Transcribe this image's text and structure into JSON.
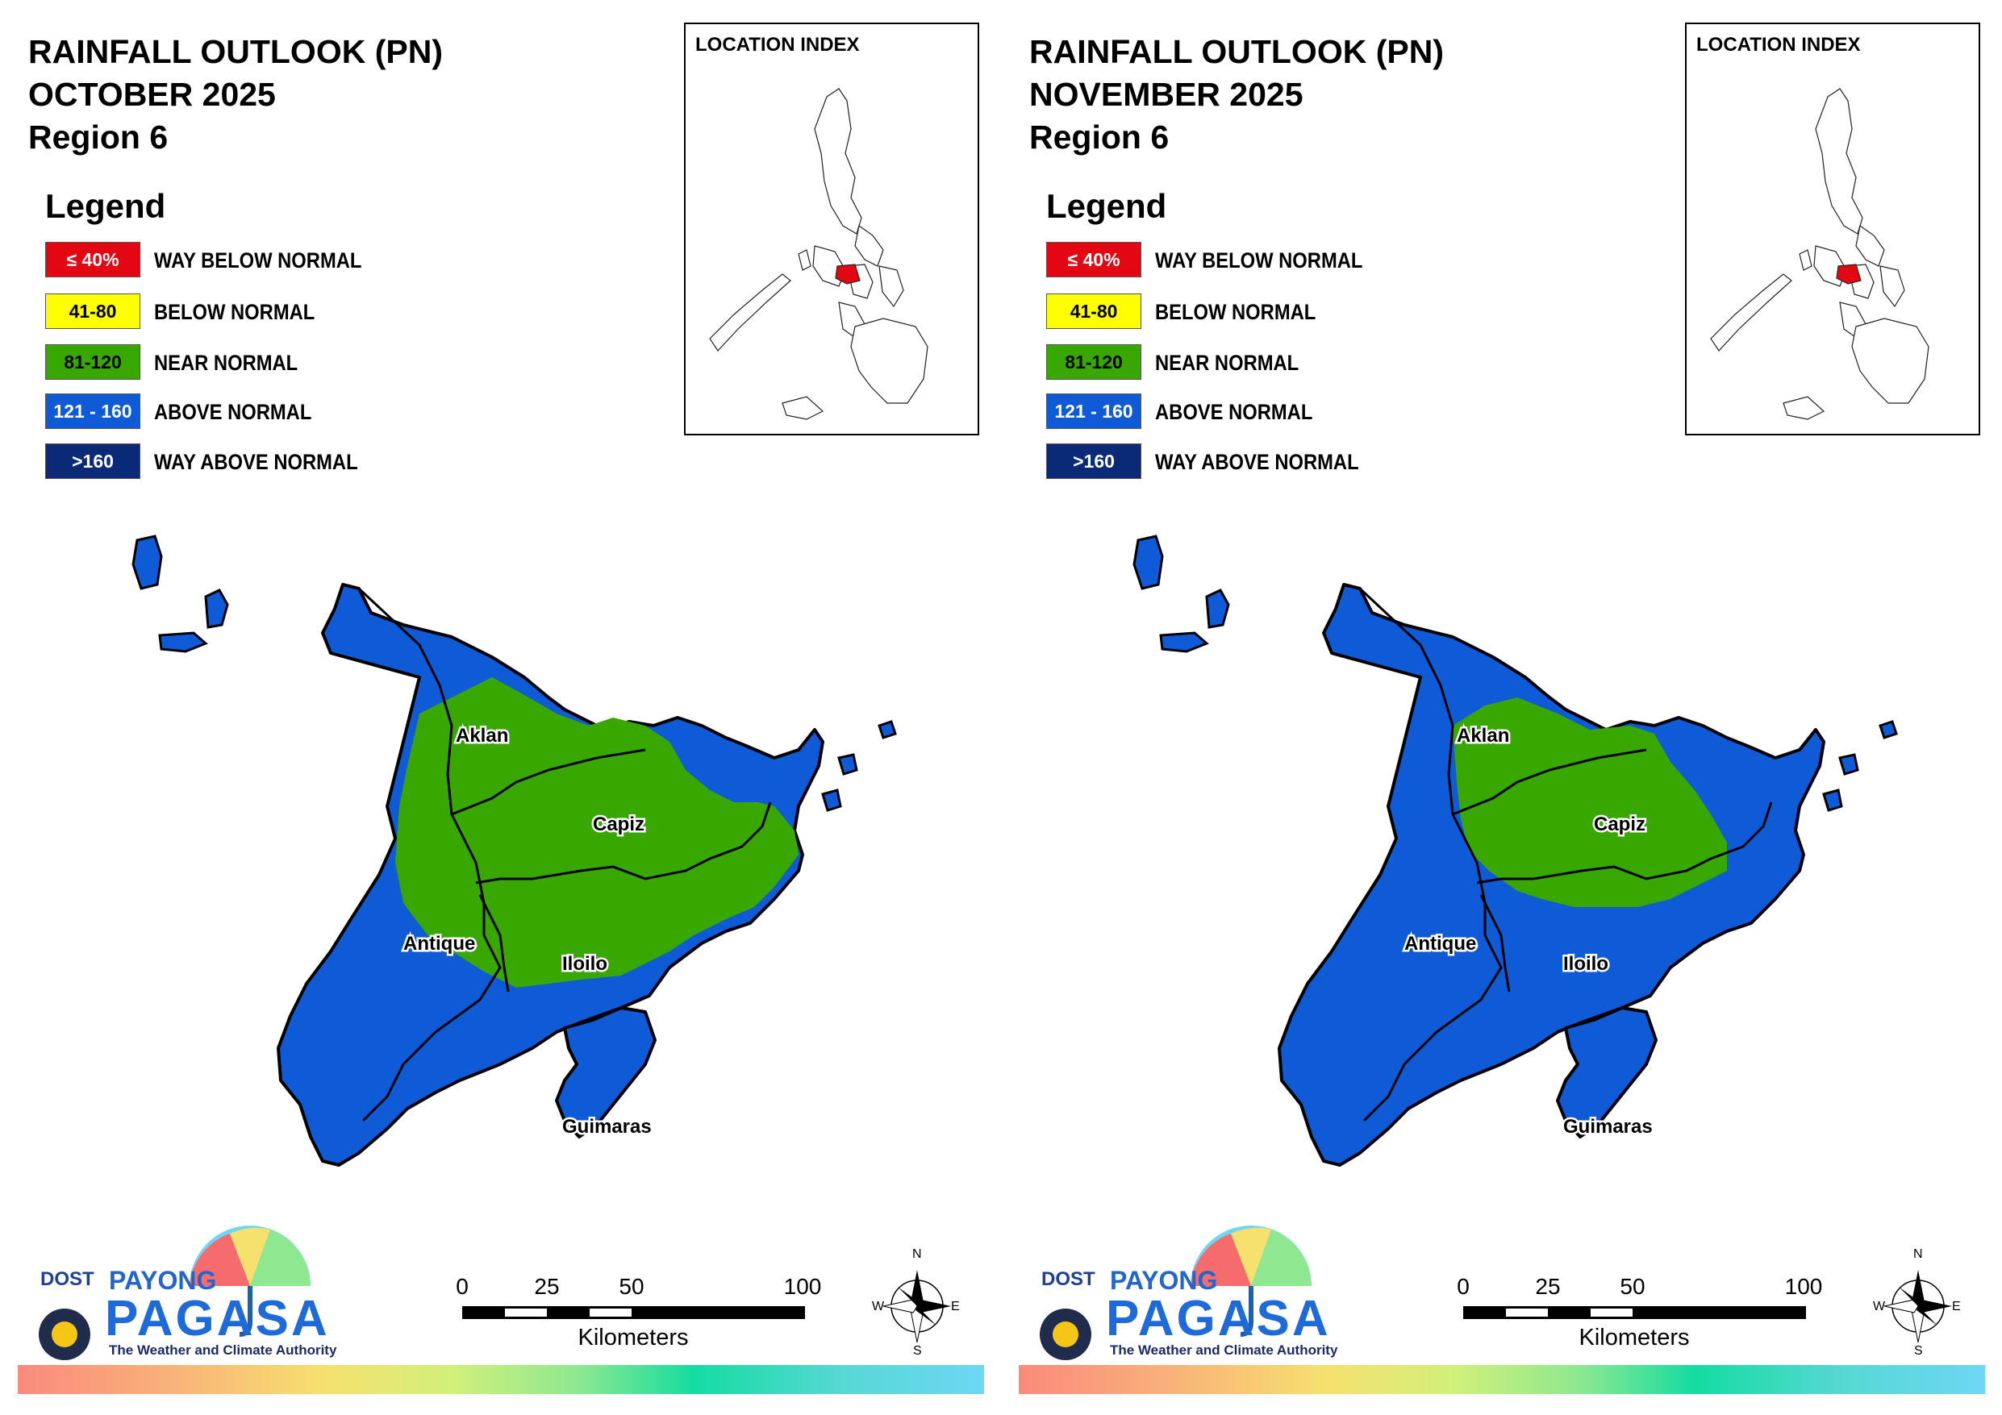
{
  "panels": [
    {
      "title_line1": "RAINFALL OUTLOOK (PN)",
      "title_line2": "OCTOBER 2025",
      "title_line3": "Region 6",
      "location_index_title": "LOCATION INDEX",
      "map_variant": "october"
    },
    {
      "title_line1": "RAINFALL OUTLOOK (PN)",
      "title_line2": "NOVEMBER 2025",
      "title_line3": "Region 6",
      "location_index_title": "LOCATION INDEX",
      "map_variant": "november"
    }
  ],
  "legend": {
    "heading": "Legend",
    "items": [
      {
        "range": "≤ 40%",
        "label": "WAY BELOW NORMAL",
        "color": "#e30613",
        "text_color": "#ffffff"
      },
      {
        "range": "41-80",
        "label": "BELOW NORMAL",
        "color": "#ffff00",
        "text_color": "#000000"
      },
      {
        "range": "81-120",
        "label": "NEAR NORMAL",
        "color": "#38a800",
        "text_color": "#000000"
      },
      {
        "range": "121 - 160",
        "label": "ABOVE NORMAL",
        "color": "#0e5ad7",
        "text_color": "#ffffff"
      },
      {
        "range": ">160",
        "label": "WAY ABOVE NORMAL",
        "color": "#0a2a78",
        "text_color": "#ffffff"
      }
    ]
  },
  "provinces": {
    "aklan": "Aklan",
    "capiz": "Capiz",
    "antique": "Antique",
    "iloilo": "Iloilo",
    "guimaras": "Guimaras"
  },
  "colors": {
    "near_normal": "#38a800",
    "above_normal": "#0e5ad7",
    "highlight_region": "#e30613"
  },
  "logo": {
    "agency": "DOST",
    "brand_top": "PAYONG",
    "brand_main": "PAGASA",
    "tagline": "The Weather and Climate Authority"
  },
  "scale": {
    "ticks": [
      "0",
      "25",
      "50",
      "100"
    ],
    "unit": "Kilometers"
  },
  "compass": {
    "n": "N",
    "e": "E",
    "s": "S",
    "w": "W"
  }
}
